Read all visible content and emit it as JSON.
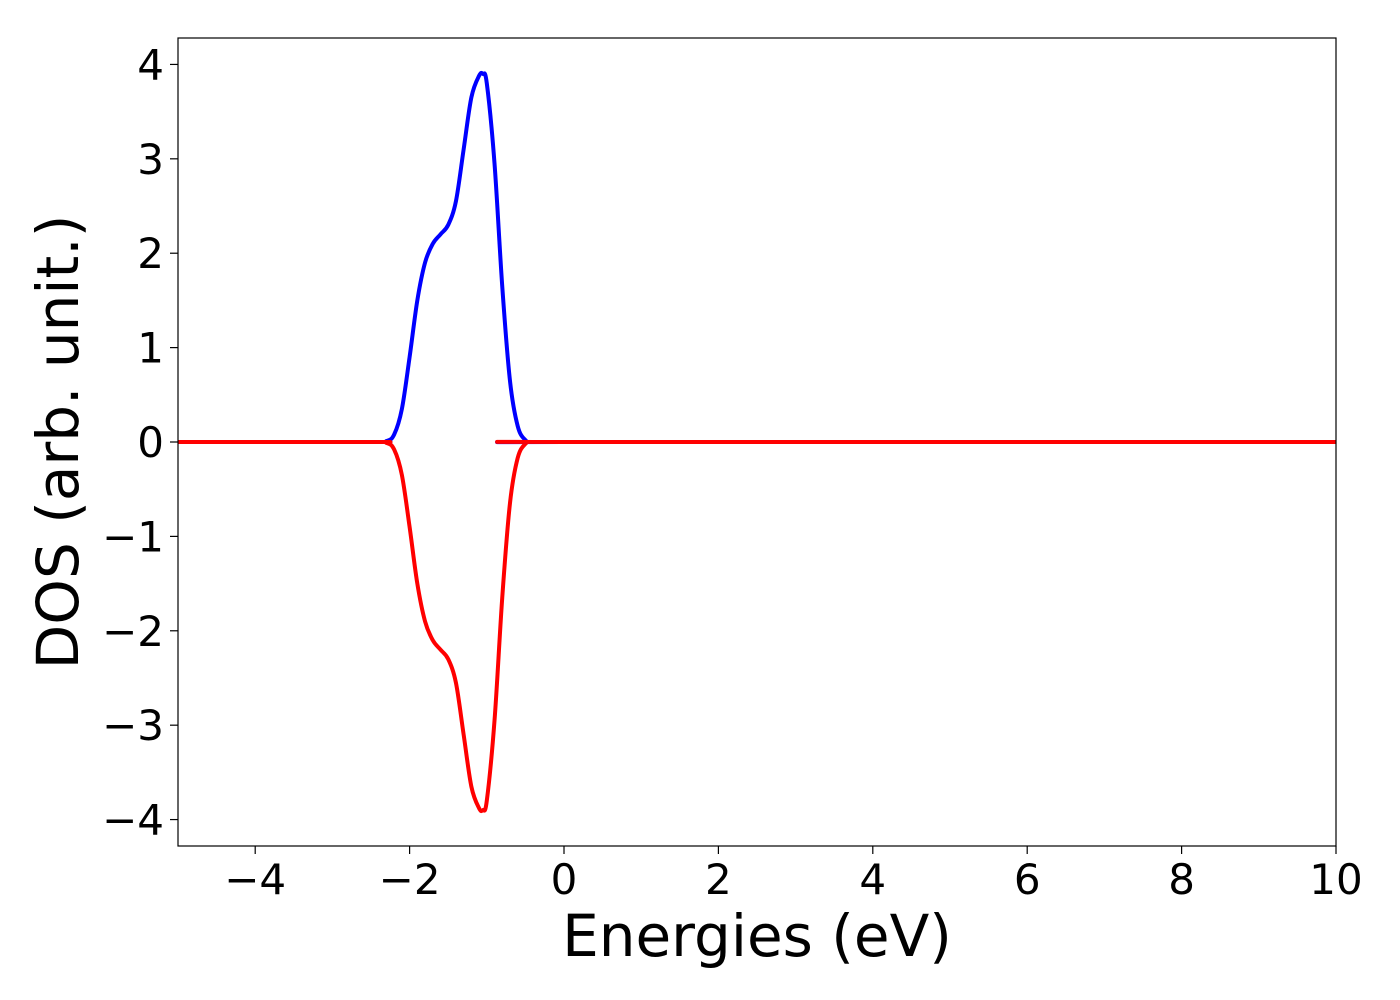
{
  "chart_data": {
    "type": "line",
    "title": "",
    "xlabel": "Energies (eV)",
    "ylabel": "DOS (arb. unit.)",
    "xlim": [
      -5,
      10
    ],
    "ylim": [
      -4.28,
      4.28
    ],
    "xticks": [
      -4,
      -2,
      0,
      2,
      4,
      6,
      8,
      10
    ],
    "yticks": [
      -4,
      -3,
      -2,
      -1,
      0,
      1,
      2,
      3,
      4
    ],
    "xtick_labels": [
      "−4",
      "−2",
      "0",
      "2",
      "4",
      "6",
      "8",
      "10"
    ],
    "ytick_labels": [
      "−4",
      "−3",
      "−2",
      "−1",
      "0",
      "1",
      "2",
      "3",
      "4"
    ],
    "grid": false,
    "series": [
      {
        "color": "#0000ff",
        "x": [
          -5,
          -2.5,
          -2.3,
          -2.2,
          -2.1,
          -2.0,
          -1.9,
          -1.8,
          -1.7,
          -1.6,
          -1.5,
          -1.4,
          -1.3,
          -1.2,
          -1.1,
          -1.05,
          -1.0,
          -0.9,
          -0.8,
          -0.7,
          -0.6,
          -0.5,
          -0.4,
          0,
          10
        ],
        "y": [
          0,
          0,
          0.01,
          0.08,
          0.35,
          0.9,
          1.5,
          1.9,
          2.1,
          2.2,
          2.3,
          2.55,
          3.1,
          3.65,
          3.88,
          3.9,
          3.8,
          2.95,
          1.65,
          0.65,
          0.17,
          0.02,
          0.0,
          0,
          0
        ]
      },
      {
        "color": "#ff0000",
        "x": [
          -5,
          -2.5,
          -2.3,
          -2.2,
          -2.1,
          -2.0,
          -1.9,
          -1.8,
          -1.7,
          -1.6,
          -1.5,
          -1.4,
          -1.3,
          -1.2,
          -1.1,
          -1.05,
          -1.0,
          -0.9,
          -0.8,
          -0.7,
          -0.6,
          -0.5,
          -0.4,
          0,
          10
        ],
        "y": [
          0,
          0,
          -0.01,
          -0.08,
          -0.35,
          -0.9,
          -1.5,
          -1.9,
          -2.1,
          -2.2,
          -2.3,
          -2.55,
          -3.1,
          -3.65,
          -3.88,
          -3.9,
          -3.8,
          -2.95,
          -1.65,
          -0.65,
          -0.17,
          -0.02,
          0.0,
          0,
          0
        ]
      }
    ]
  }
}
